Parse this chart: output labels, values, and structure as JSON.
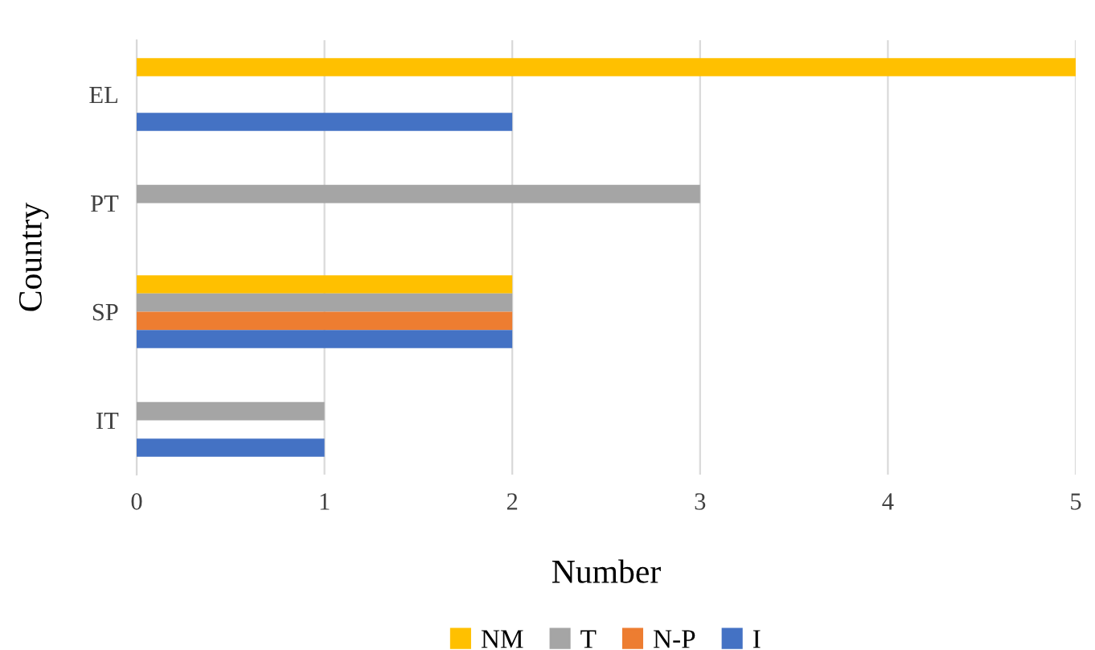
{
  "chart_data": {
    "type": "bar",
    "orientation": "horizontal",
    "xlabel": "Number",
    "ylabel": "Country",
    "categories": [
      "EL",
      "PT",
      "SP",
      "IT"
    ],
    "series": [
      {
        "name": "NM",
        "color": "#ffc000",
        "values": [
          5,
          null,
          2,
          null
        ]
      },
      {
        "name": "T",
        "color": "#a5a5a5",
        "values": [
          null,
          3,
          2,
          1
        ]
      },
      {
        "name": "N-P",
        "color": "#ed7d31",
        "values": [
          null,
          null,
          2,
          null
        ]
      },
      {
        "name": "I",
        "color": "#4472c4",
        "values": [
          2,
          null,
          2,
          1
        ]
      }
    ],
    "xlim": [
      0,
      5
    ],
    "xticks": [
      0,
      1,
      2,
      3,
      4,
      5
    ],
    "grid": "x",
    "legend": "bottom"
  }
}
